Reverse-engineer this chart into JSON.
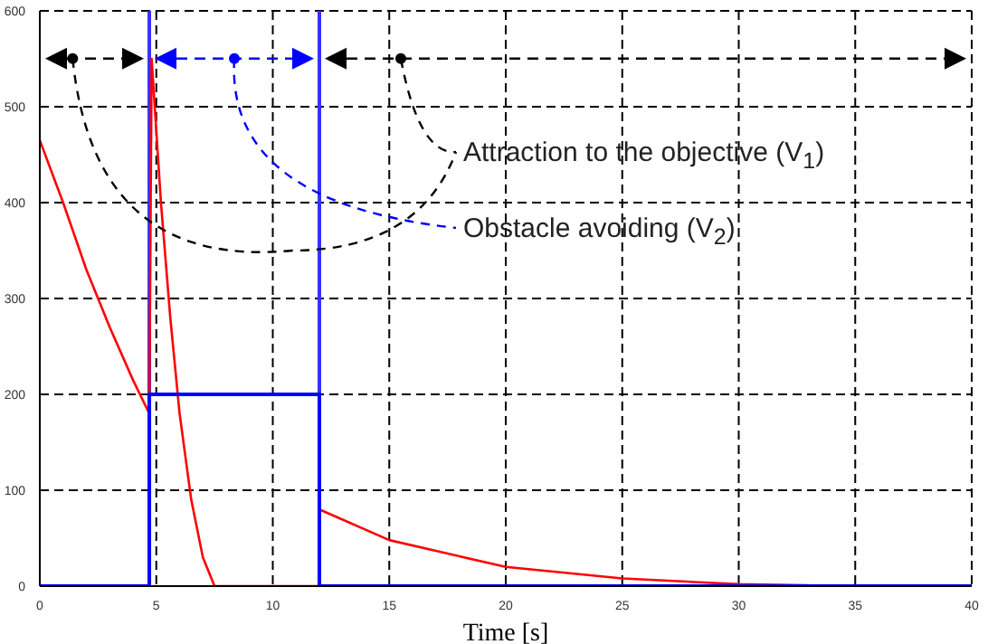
{
  "chart_data": {
    "type": "line",
    "xlabel": "Time [s]",
    "xlim": [
      0,
      40
    ],
    "xticks": [
      0,
      5,
      10,
      15,
      20,
      25,
      30,
      35,
      40
    ],
    "ylim": [
      0,
      600
    ],
    "yticks": [
      0,
      100,
      200,
      300,
      400,
      500,
      600
    ],
    "grid": true,
    "marker": "none",
    "line_style": "solid",
    "series": [
      {
        "color": "#ff0000",
        "x": [
          0,
          1,
          2,
          3,
          4,
          4.7,
          4.8,
          5.2,
          5.6,
          6,
          6.5,
          7,
          7.5,
          12,
          12,
          15,
          20,
          25,
          30,
          35,
          40
        ],
        "values": [
          465,
          400,
          330,
          270,
          215,
          180,
          550,
          400,
          280,
          180,
          90,
          30,
          0,
          0,
          80,
          48,
          20,
          8,
          2,
          0,
          0
        ]
      },
      {
        "color": "#0000ff",
        "x": [
          0,
          4.7,
          4.7,
          12,
          12,
          40
        ],
        "values": [
          0,
          0,
          200,
          200,
          0,
          0
        ]
      }
    ],
    "ref_lines": [
      {
        "axis": "x",
        "value": 4.7,
        "color": "#3333ff"
      },
      {
        "axis": "x",
        "value": 12,
        "color": "#3333ff"
      }
    ],
    "annotations": [
      "Attraction to the objective (V$_{1}$)",
      "Obstacle avoiding (V$_{2}$)"
    ]
  }
}
